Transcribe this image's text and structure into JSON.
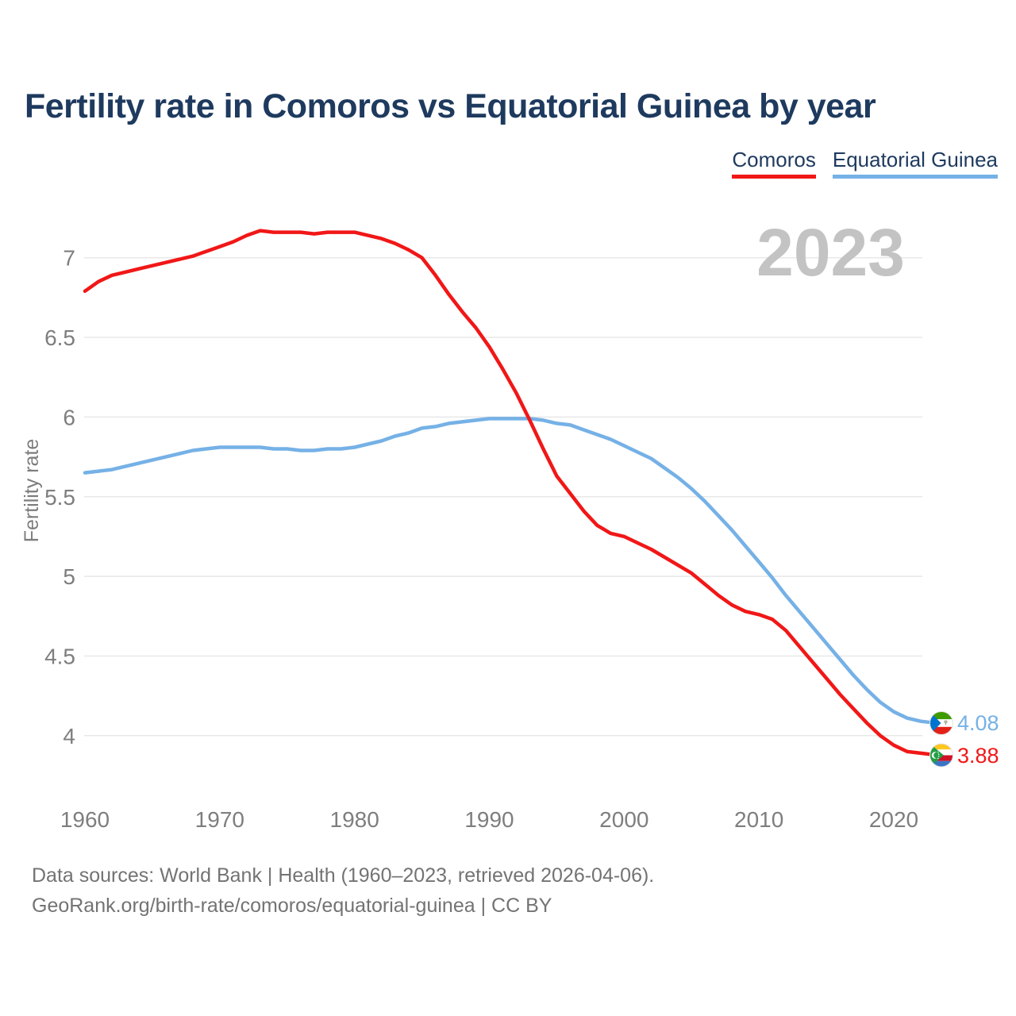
{
  "title": "Fertility rate in Comoros vs Equatorial Guinea by year",
  "legend": {
    "items": [
      {
        "label": "Comoros",
        "color": "#f11717"
      },
      {
        "label": "Equatorial Guinea",
        "color": "#75b1e6"
      }
    ]
  },
  "watermark": "2023",
  "y_axis": {
    "label": "Fertility rate"
  },
  "end_labels": {
    "equatorial_guinea": "4.08",
    "comoros": "3.88"
  },
  "footer": {
    "line1": "Data sources: World Bank | Health (1960–2023, retrieved 2026-04-06).",
    "line2": "GeoRank.org/birth-rate/comoros/equatorial-guinea | CC BY"
  },
  "chart_data": {
    "type": "line",
    "title": "Fertility rate in Comoros vs Equatorial Guinea by year",
    "ylabel": "Fertility rate",
    "xlabel": "",
    "ylim": [
      3.6,
      7.4
    ],
    "xlim": [
      1960,
      2023
    ],
    "yticks": [
      7,
      6.5,
      6,
      5.5,
      5,
      4.5,
      4
    ],
    "xticks": [
      1960,
      1970,
      1980,
      1990,
      2000,
      2010,
      2020
    ],
    "grid": "horizontal",
    "legend_position": "top-right",
    "annotations": [
      "2023 watermark",
      "end values 4.08 (Equatorial Guinea) and 3.88 (Comoros)"
    ],
    "x": [
      1960,
      1961,
      1962,
      1963,
      1964,
      1965,
      1966,
      1967,
      1968,
      1969,
      1970,
      1971,
      1972,
      1973,
      1974,
      1975,
      1976,
      1977,
      1978,
      1979,
      1980,
      1981,
      1982,
      1983,
      1984,
      1985,
      1986,
      1987,
      1988,
      1989,
      1990,
      1991,
      1992,
      1993,
      1994,
      1995,
      1996,
      1997,
      1998,
      1999,
      2000,
      2001,
      2002,
      2003,
      2004,
      2005,
      2006,
      2007,
      2008,
      2009,
      2010,
      2011,
      2012,
      2013,
      2014,
      2015,
      2016,
      2017,
      2018,
      2019,
      2020,
      2021,
      2022,
      2023
    ],
    "series": [
      {
        "name": "Equatorial Guinea",
        "color": "#75b1e6",
        "end_value": 4.08,
        "values": [
          5.65,
          5.66,
          5.67,
          5.69,
          5.71,
          5.73,
          5.75,
          5.77,
          5.79,
          5.8,
          5.81,
          5.81,
          5.81,
          5.81,
          5.8,
          5.8,
          5.79,
          5.79,
          5.8,
          5.8,
          5.81,
          5.83,
          5.85,
          5.88,
          5.9,
          5.93,
          5.94,
          5.96,
          5.97,
          5.98,
          5.99,
          5.99,
          5.99,
          5.99,
          5.98,
          5.96,
          5.95,
          5.92,
          5.89,
          5.86,
          5.82,
          5.78,
          5.74,
          5.68,
          5.62,
          5.55,
          5.47,
          5.38,
          5.29,
          5.19,
          5.09,
          4.99,
          4.88,
          4.78,
          4.68,
          4.58,
          4.48,
          4.38,
          4.29,
          4.21,
          4.15,
          4.11,
          4.09,
          4.08
        ]
      },
      {
        "name": "Comoros",
        "color": "#f11717",
        "end_value": 3.88,
        "values": [
          6.79,
          6.85,
          6.89,
          6.91,
          6.93,
          6.95,
          6.97,
          6.99,
          7.01,
          7.04,
          7.07,
          7.1,
          7.14,
          7.17,
          7.16,
          7.16,
          7.16,
          7.15,
          7.16,
          7.16,
          7.16,
          7.14,
          7.12,
          7.09,
          7.05,
          7.0,
          6.89,
          6.77,
          6.66,
          6.56,
          6.44,
          6.3,
          6.15,
          5.98,
          5.8,
          5.63,
          5.52,
          5.41,
          5.32,
          5.27,
          5.25,
          5.21,
          5.17,
          5.12,
          5.07,
          5.02,
          4.95,
          4.88,
          4.82,
          4.78,
          4.76,
          4.73,
          4.66,
          4.56,
          4.46,
          4.36,
          4.26,
          4.17,
          4.08,
          4.0,
          3.94,
          3.9,
          3.89,
          3.88
        ]
      }
    ]
  }
}
